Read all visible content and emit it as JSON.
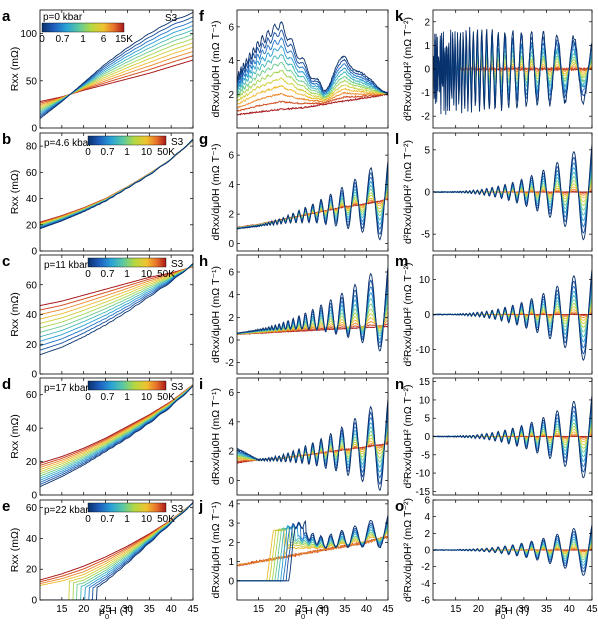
{
  "figure": {
    "xaxis_label_parts": [
      "μ",
      "0",
      "H (T)"
    ],
    "colors": {
      "gradient": [
        "#08306b",
        "#1f5fbf",
        "#29a3d6",
        "#5cc9a0",
        "#b5d840",
        "#f0c330",
        "#e8702a",
        "#a8181b"
      ]
    }
  },
  "chart_data": [
    {
      "type": "line",
      "panel": "a",
      "column": 0,
      "row": 0,
      "sample": "S3",
      "pressure_label": "p=0 kbar",
      "colorbar_ticks": [
        "0",
        "0.7",
        "1",
        "6",
        "15K"
      ],
      "xlabel": "μ0H (T)",
      "ylabel": "Rxx (mΩ)",
      "xlim": [
        10,
        45
      ],
      "ylim": [
        0,
        125
      ],
      "xticks": [],
      "yticks": [
        0,
        50,
        100
      ],
      "series_shape": "rxx",
      "series": [
        {
          "temperature": "low",
          "x": [
            10,
            15,
            20,
            25,
            30,
            35,
            40,
            45
          ],
          "values": [
            10,
            28,
            48,
            68,
            85,
            100,
            113,
            122
          ]
        },
        {
          "temperature": "high",
          "x": [
            10,
            15,
            20,
            25,
            30,
            35,
            40,
            45
          ],
          "values": [
            28,
            33,
            40,
            46,
            52,
            58,
            65,
            72
          ]
        }
      ]
    },
    {
      "type": "line",
      "panel": "b",
      "column": 0,
      "row": 1,
      "sample": "S3",
      "pressure_label": "p=4.6 kbar",
      "colorbar_ticks": [
        "0",
        "0.7",
        "1",
        "10",
        "50K"
      ],
      "xlabel": "μ0H (T)",
      "ylabel": "Rxx (mΩ)",
      "xlim": [
        10,
        45
      ],
      "ylim": [
        0,
        90
      ],
      "xticks": [],
      "yticks": [
        0,
        20,
        40,
        60,
        80
      ],
      "series_shape": "rxx",
      "series": [
        {
          "temperature": "low",
          "x": [
            10,
            15,
            20,
            25,
            30,
            35,
            40,
            45
          ],
          "values": [
            17,
            23,
            30,
            38,
            48,
            58,
            70,
            85
          ]
        },
        {
          "temperature": "high",
          "x": [
            10,
            15,
            20,
            25,
            30,
            35,
            40,
            45
          ],
          "values": [
            22,
            27,
            33,
            40,
            49,
            59,
            70,
            84
          ]
        }
      ]
    },
    {
      "type": "line",
      "panel": "c",
      "column": 0,
      "row": 2,
      "sample": "S3",
      "pressure_label": "p=11 kbar",
      "colorbar_ticks": [
        "0",
        "0.7",
        "1",
        "10",
        "50K"
      ],
      "xlabel": "μ0H (T)",
      "ylabel": "Rxx (mΩ)",
      "xlim": [
        10,
        45
      ],
      "ylim": [
        0,
        80
      ],
      "xticks": [],
      "yticks": [
        0,
        20,
        40,
        60
      ],
      "series_shape": "rxx",
      "series": [
        {
          "temperature": "low",
          "x": [
            10,
            15,
            20,
            25,
            30,
            35,
            40,
            45
          ],
          "values": [
            13,
            18,
            25,
            33,
            42,
            52,
            62,
            74
          ]
        },
        {
          "temperature": "high",
          "x": [
            10,
            15,
            20,
            25,
            30,
            35,
            40,
            45
          ],
          "values": [
            46,
            49,
            53,
            57,
            61,
            65,
            68,
            72
          ]
        }
      ]
    },
    {
      "type": "line",
      "panel": "d",
      "column": 0,
      "row": 3,
      "sample": "S3",
      "pressure_label": "p=17 kbar",
      "colorbar_ticks": [
        "0",
        "0.7",
        "1",
        "10",
        "50K"
      ],
      "xlabel": "μ0H (T)",
      "ylabel": "Rxx (mΩ)",
      "xlim": [
        10,
        45
      ],
      "ylim": [
        0,
        70
      ],
      "xticks": [],
      "yticks": [
        0,
        20,
        40,
        60
      ],
      "series_shape": "rxx",
      "series": [
        {
          "temperature": "low",
          "x": [
            10,
            15,
            20,
            25,
            30,
            35,
            40,
            45
          ],
          "values": [
            5,
            11,
            18,
            26,
            34,
            43,
            53,
            65
          ]
        },
        {
          "temperature": "high",
          "x": [
            10,
            15,
            20,
            25,
            30,
            35,
            40,
            45
          ],
          "values": [
            19,
            23,
            28,
            34,
            41,
            48,
            56,
            66
          ]
        }
      ]
    },
    {
      "type": "line",
      "panel": "e",
      "column": 0,
      "row": 4,
      "sample": "S3",
      "pressure_label": "p=22 kbar",
      "colorbar_ticks": [
        "0",
        "0.7",
        "1",
        "10",
        "50K"
      ],
      "xlabel": "μ0H (T)",
      "ylabel": "Rxx (mΩ)",
      "xlim": [
        10,
        45
      ],
      "ylim": [
        0,
        65
      ],
      "xticks": [
        15,
        20,
        25,
        30,
        35,
        40,
        45
      ],
      "yticks": [
        0,
        20,
        40,
        60
      ],
      "series_shape": "rxx_sc",
      "series": [
        {
          "temperature": "low",
          "x": [
            10,
            15,
            20,
            25,
            30,
            35,
            40,
            45
          ],
          "values": [
            0,
            0,
            2,
            12,
            24,
            37,
            50,
            63
          ]
        },
        {
          "temperature": "high",
          "x": [
            10,
            15,
            20,
            25,
            30,
            35,
            40,
            45
          ],
          "values": [
            13,
            17,
            22,
            28,
            35,
            43,
            52,
            63
          ]
        }
      ]
    },
    {
      "type": "line",
      "panel": "f",
      "column": 1,
      "row": 0,
      "xlabel": "μ0H (T)",
      "ylabel": "dRxx/dμ0H (mΩ T⁻¹)",
      "xlim": [
        10,
        45
      ],
      "ylim": [
        0,
        7
      ],
      "xticks": [],
      "yticks": [
        2,
        4,
        6
      ],
      "series_shape": "deriv_peak",
      "series": [
        {
          "temperature": "low",
          "x": [
            10,
            15,
            20,
            25,
            30,
            35,
            40,
            45
          ],
          "values": [
            3.0,
            5.0,
            6.2,
            4.0,
            2.2,
            4.3,
            2.8,
            2.3
          ]
        },
        {
          "temperature": "high",
          "x": [
            10,
            15,
            20,
            25,
            30,
            35,
            40,
            45
          ],
          "values": [
            0.8,
            0.95,
            1.1,
            1.2,
            1.4,
            1.6,
            1.8,
            2.0
          ]
        }
      ]
    },
    {
      "type": "line",
      "panel": "g",
      "column": 1,
      "row": 1,
      "xlabel": "μ0H (T)",
      "ylabel": "dRxx/dμ0H (mΩ T⁻¹)",
      "xlim": [
        10,
        45
      ],
      "ylim": [
        -0.5,
        7.5
      ],
      "xticks": [],
      "yticks": [
        0,
        2,
        4,
        6
      ],
      "series_shape": "deriv_osc",
      "series": [
        {
          "temperature": "low",
          "x": [
            10,
            15,
            20,
            25,
            30,
            35,
            40,
            45
          ],
          "values": [
            1.0,
            1.2,
            1.5,
            1.9,
            2.2,
            2.5,
            2.8,
            3.0
          ],
          "oscillation_amplitude_at_45T": 3.0
        },
        {
          "temperature": "high",
          "x": [
            10,
            15,
            20,
            25,
            30,
            35,
            40,
            45
          ],
          "values": [
            1.1,
            1.3,
            1.6,
            1.9,
            2.2,
            2.5,
            2.7,
            3.0
          ]
        }
      ]
    },
    {
      "type": "line",
      "panel": "h",
      "column": 1,
      "row": 2,
      "xlabel": "μ0H (T)",
      "ylabel": "dRxx/dμ0H (mΩ T⁻¹)",
      "xlim": [
        10,
        45
      ],
      "ylim": [
        -3,
        7.5
      ],
      "xticks": [],
      "yticks": [
        -2,
        0,
        2,
        4,
        6
      ],
      "series_shape": "deriv_osc",
      "series": [
        {
          "temperature": "low",
          "x": [
            10,
            15,
            20,
            25,
            30,
            35,
            40,
            45
          ],
          "values": [
            0.6,
            0.9,
            1.2,
            1.6,
            2.0,
            2.3,
            2.6,
            2.8
          ],
          "oscillation_amplitude_at_45T": 4.2
        },
        {
          "temperature": "high",
          "x": [
            10,
            15,
            20,
            25,
            30,
            35,
            40,
            45
          ],
          "values": [
            0.5,
            0.6,
            0.7,
            0.8,
            0.9,
            1.0,
            1.1,
            1.2
          ]
        }
      ]
    },
    {
      "type": "line",
      "panel": "i",
      "column": 1,
      "row": 3,
      "xlabel": "μ0H (T)",
      "ylabel": "dRxx/dμ0H (mΩ T⁻¹)",
      "xlim": [
        10,
        45
      ],
      "ylim": [
        -1,
        7
      ],
      "xticks": [],
      "yticks": [
        0,
        2,
        4,
        6
      ],
      "series_shape": "deriv_osc",
      "series": [
        {
          "temperature": "low",
          "x": [
            10,
            15,
            20,
            25,
            30,
            35,
            40,
            45
          ],
          "values": [
            2.2,
            1.4,
            1.5,
            1.7,
            1.9,
            2.1,
            2.3,
            2.5
          ],
          "oscillation_amplitude_at_45T": 3.5
        },
        {
          "temperature": "high",
          "x": [
            10,
            15,
            20,
            25,
            30,
            35,
            40,
            45
          ],
          "values": [
            1.2,
            1.4,
            1.5,
            1.7,
            1.9,
            2.1,
            2.3,
            2.5
          ]
        }
      ]
    },
    {
      "type": "line",
      "panel": "j",
      "column": 1,
      "row": 4,
      "xlabel": "μ0H (T)",
      "ylabel": "dRxx/dμ0H (mΩ T⁻¹)",
      "xlim": [
        10,
        45
      ],
      "ylim": [
        -1,
        4.2
      ],
      "xticks": [
        15,
        20,
        25,
        30,
        35,
        40,
        45
      ],
      "yticks": [
        0,
        1,
        2,
        3,
        4
      ],
      "series_shape": "deriv_sc",
      "series": [
        {
          "temperature": "low",
          "x": [
            10,
            15,
            20,
            22,
            25,
            30,
            35,
            40,
            45
          ],
          "values": [
            0,
            0,
            0.5,
            2.9,
            2.5,
            2.0,
            2.2,
            2.4,
            2.6
          ],
          "oscillation_amplitude_at_45T": 0.9
        },
        {
          "temperature": "high",
          "x": [
            10,
            15,
            20,
            25,
            30,
            35,
            40,
            45
          ],
          "values": [
            0.8,
            1.0,
            1.2,
            1.4,
            1.6,
            1.8,
            2.0,
            2.3
          ]
        }
      ]
    },
    {
      "type": "line",
      "panel": "k",
      "column": 2,
      "row": 0,
      "xlabel": "μ0H (T)",
      "ylabel": "d²Rxx/dμ0H² (mΩ T⁻²)",
      "xlim": [
        10,
        45
      ],
      "ylim": [
        -2.5,
        2.5
      ],
      "xticks": [],
      "yticks": [
        -2,
        -1,
        0,
        1,
        2
      ],
      "series_shape": "second_k",
      "series": [
        {
          "temperature": "low",
          "x": [
            10,
            45
          ],
          "values": [
            0,
            0
          ],
          "oscillation_amplitude_at_45T": 1.8
        },
        {
          "temperature": "high",
          "x": [
            10,
            45
          ],
          "values": [
            0,
            0
          ]
        }
      ]
    },
    {
      "type": "line",
      "panel": "l",
      "column": 2,
      "row": 1,
      "xlabel": "μ0H (T)",
      "ylabel": "d²Rxx/dμ0H² (mΩ T⁻²)",
      "xlim": [
        10,
        45
      ],
      "ylim": [
        -7,
        7
      ],
      "xticks": [],
      "yticks": [
        -5,
        0,
        5
      ],
      "series_shape": "second_osc",
      "series": [
        {
          "temperature": "low",
          "x": [
            10,
            45
          ],
          "values": [
            0,
            0
          ],
          "oscillation_amplitude_at_45T": 6.5
        },
        {
          "temperature": "high",
          "x": [
            10,
            45
          ],
          "values": [
            0,
            0
          ]
        }
      ]
    },
    {
      "type": "line",
      "panel": "m",
      "column": 2,
      "row": 2,
      "xlabel": "μ0H (T)",
      "ylabel": "d²Rxx/dμ0H² (mΩ T⁻²)",
      "xlim": [
        10,
        45
      ],
      "ylim": [
        -17,
        17
      ],
      "xticks": [],
      "yticks": [
        -10,
        0,
        10
      ],
      "series_shape": "second_osc",
      "series": [
        {
          "temperature": "low",
          "x": [
            10,
            45
          ],
          "values": [
            0,
            0
          ],
          "oscillation_amplitude_at_45T": 15
        },
        {
          "temperature": "high",
          "x": [
            10,
            45
          ],
          "values": [
            0,
            0
          ]
        }
      ]
    },
    {
      "type": "line",
      "panel": "n",
      "column": 2,
      "row": 3,
      "xlabel": "μ0H (T)",
      "ylabel": "d²Rxx/dμ0H² (mΩ T⁻²)",
      "xlim": [
        10,
        45
      ],
      "ylim": [
        -16,
        16
      ],
      "xticks": [],
      "yticks": [
        -15,
        -10,
        -5,
        0,
        5,
        10,
        15
      ],
      "series_shape": "second_osc",
      "series": [
        {
          "temperature": "low",
          "x": [
            10,
            45
          ],
          "values": [
            0,
            0
          ],
          "oscillation_amplitude_at_45T": 13
        },
        {
          "temperature": "high",
          "x": [
            10,
            45
          ],
          "values": [
            0,
            0
          ]
        }
      ]
    },
    {
      "type": "line",
      "panel": "o",
      "column": 2,
      "row": 4,
      "xlabel": "μ0H (T)",
      "ylabel": "d²Rxx/dμ0H² (mΩ T⁻²)",
      "xlim": [
        10,
        45
      ],
      "ylim": [
        -6,
        6
      ],
      "xticks": [
        15,
        20,
        25,
        30,
        35,
        40,
        45
      ],
      "yticks": [
        -6,
        -4,
        -2,
        0,
        2,
        4,
        6
      ],
      "series_shape": "second_osc",
      "series": [
        {
          "temperature": "low",
          "x": [
            10,
            45
          ],
          "values": [
            0,
            0
          ],
          "oscillation_amplitude_at_45T": 3.5
        },
        {
          "temperature": "high",
          "x": [
            10,
            45
          ],
          "values": [
            0,
            0
          ]
        }
      ]
    }
  ]
}
